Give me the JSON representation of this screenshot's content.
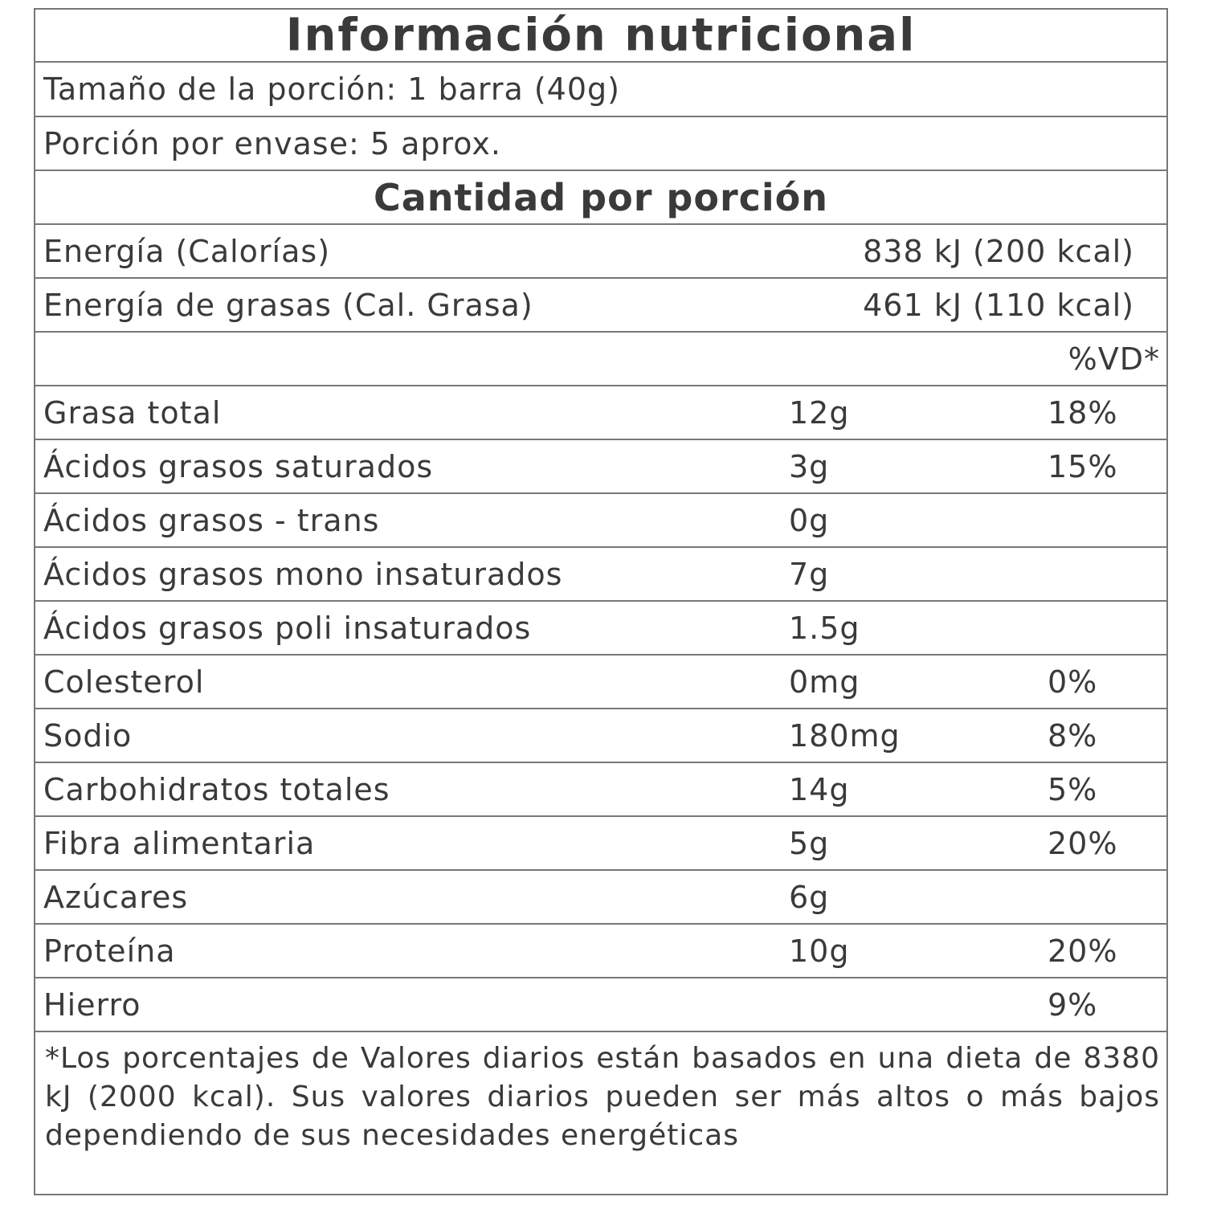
{
  "title": "Información nutricional",
  "serving_size": "Tamaño de la porción: 1 barra (40g)",
  "servings_per_container": "Porción por envase: 5 aprox.",
  "amount_per_serving": "Cantidad por porción",
  "energy": [
    {
      "label": "Energía (Calorías)",
      "value": "838 kJ (200 kcal)"
    },
    {
      "label": "Energía de grasas (Cal. Grasa)",
      "value": "461 kJ (110 kcal)"
    }
  ],
  "dv_header": "%VD*",
  "nutrients": [
    {
      "label": "Grasa total",
      "amount": "12g",
      "dv": "18%"
    },
    {
      "label": "Ácidos grasos saturados",
      "amount": "3g",
      "dv": "15%"
    },
    {
      "label": "Ácidos grasos - trans",
      "amount": "0g",
      "dv": ""
    },
    {
      "label": "Ácidos grasos mono insaturados",
      "amount": "7g",
      "dv": ""
    },
    {
      "label": "Ácidos grasos poli insaturados",
      "amount": "1.5g",
      "dv": ""
    },
    {
      "label": "Colesterol",
      "amount": "0mg",
      "dv": "0%"
    },
    {
      "label": "Sodio",
      "amount": "180mg",
      "dv": "8%"
    },
    {
      "label": "Carbohidratos totales",
      "amount": "14g",
      "dv": "5%"
    },
    {
      "label": "Fibra alimentaria",
      "amount": "5g",
      "dv": "20%"
    },
    {
      "label": "Azúcares",
      "amount": "6g",
      "dv": ""
    },
    {
      "label": "Proteína",
      "amount": "10g",
      "dv": "20%"
    },
    {
      "label": "Hierro",
      "amount": "",
      "dv": "9%"
    }
  ],
  "footnote": "*Los porcentajes de Valores diarios están basados en una dieta de 8380 kJ (2000 kcal). Sus valores diarios pueden ser más altos o más bajos dependiendo de sus necesidades energéticas"
}
